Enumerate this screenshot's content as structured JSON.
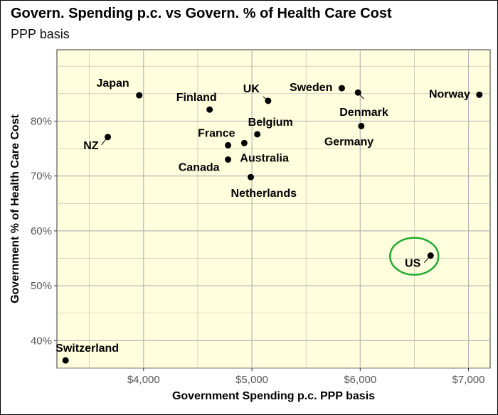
{
  "title": "Govern. Spending p.c. vs Govern. % of Health Care Cost",
  "subtitle": "PPP basis",
  "colors": {
    "panel": "#FFFEDD",
    "grid": "#B7B7B7",
    "point": "#000000",
    "highlight": "#22AA33"
  },
  "chart_data": {
    "type": "scatter",
    "title": "Govern. Spending p.c. vs Govern. % of Health Care Cost",
    "subtitle": "PPP basis",
    "xlabel": "Government Spending p.c.  PPP basis",
    "ylabel": "Government % of Health Care Cost",
    "xlim": [
      3200,
      7200
    ],
    "ylim": [
      35,
      93
    ],
    "x_ticks": [
      4000,
      5000,
      6000,
      7000
    ],
    "x_tick_labels": [
      "$4,000",
      "$5,000",
      "$6,000",
      "$7,000"
    ],
    "y_ticks": [
      40,
      50,
      60,
      70,
      80
    ],
    "y_tick_labels": [
      "40%",
      "50%",
      "60%",
      "70%",
      "80%"
    ],
    "grid": true,
    "points": [
      {
        "label": "Japan",
        "x": 3960,
        "y": 84.7
      },
      {
        "label": "NZ",
        "x": 3670,
        "y": 77.1
      },
      {
        "label": "Finland",
        "x": 4610,
        "y": 82.1
      },
      {
        "label": "France",
        "x": 4780,
        "y": 75.6
      },
      {
        "label": "Australia",
        "x": 4930,
        "y": 76.0
      },
      {
        "label": "Canada",
        "x": 4780,
        "y": 73.0
      },
      {
        "label": "Netherlands",
        "x": 4990,
        "y": 69.8
      },
      {
        "label": "Belgium",
        "x": 5050,
        "y": 77.6
      },
      {
        "label": "UK",
        "x": 5150,
        "y": 83.7
      },
      {
        "label": "Sweden",
        "x": 5830,
        "y": 86.0
      },
      {
        "label": "Denmark",
        "x": 5980,
        "y": 85.2
      },
      {
        "label": "Germany",
        "x": 6010,
        "y": 79.1
      },
      {
        "label": "Norway",
        "x": 7100,
        "y": 84.8
      },
      {
        "label": "US",
        "x": 6650,
        "y": 55.5
      },
      {
        "label": "Switzerland",
        "x": 3280,
        "y": 36.4
      }
    ],
    "highlight": {
      "label": "US"
    }
  }
}
